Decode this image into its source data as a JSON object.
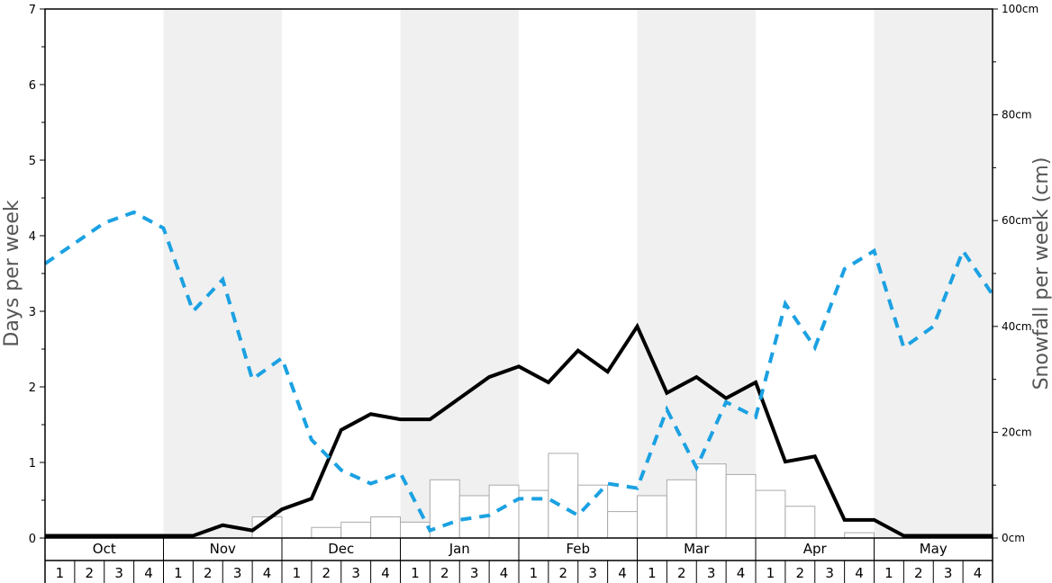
{
  "chart_data": {
    "type": "bar",
    "title": "",
    "ylabel": "Days per week",
    "y2label": "Snowfall per week (cm)",
    "ylim": [
      0,
      7
    ],
    "y2lim": [
      0,
      100
    ],
    "yticks": [
      "0",
      "1",
      "2",
      "3",
      "4",
      "5",
      "6",
      "7"
    ],
    "y2ticks": [
      "0cm",
      "20cm",
      "40cm",
      "60cm",
      "80cm",
      "100cm"
    ],
    "months": [
      "Oct",
      "Nov",
      "Dec",
      "Jan",
      "Feb",
      "Mar",
      "Apr",
      "May"
    ],
    "weeks": [
      "1",
      "2",
      "3",
      "4"
    ],
    "shaded_months": [
      "Nov",
      "Jan",
      "Mar",
      "May"
    ],
    "colors": {
      "shade": "#f0f0f0",
      "bars": "#ffffff",
      "bar_edge": "#aaaaaa",
      "black_line": "#000000",
      "blue_line": "#1ba1e2"
    },
    "series": [
      {
        "kind": "bar",
        "axis": "right",
        "values": [
          0,
          0,
          0,
          0,
          0,
          0,
          0,
          4,
          0,
          2,
          3,
          4,
          3,
          11,
          8,
          10,
          9,
          16,
          10,
          5,
          8,
          11,
          14,
          12,
          9,
          6,
          0,
          1,
          0,
          0,
          0,
          0
        ]
      },
      {
        "kind": "line",
        "style": "solid",
        "axis": "left",
        "values": [
          0.03,
          0.03,
          0.03,
          0.03,
          0.03,
          0.03,
          0.17,
          0.1,
          0.38,
          0.52,
          1.43,
          1.64,
          1.57,
          1.57,
          1.85,
          2.13,
          2.27,
          2.06,
          2.48,
          2.2,
          2.8,
          1.92,
          2.13,
          1.85,
          2.06,
          1.01,
          1.08,
          0.24,
          0.24,
          0.03,
          0.03,
          0.03
        ]
      },
      {
        "kind": "line",
        "style": "dashed",
        "axis": "left",
        "values": [
          3.63,
          3.9,
          4.17,
          4.31,
          4.1,
          3.0,
          3.42,
          2.1,
          2.38,
          1.3,
          0.9,
          0.72,
          0.86,
          0.1,
          0.24,
          0.3,
          0.52,
          0.52,
          0.3,
          0.72,
          0.66,
          1.7,
          0.93,
          1.8,
          1.6,
          3.1,
          2.52,
          3.56,
          3.8,
          2.52,
          2.8,
          3.8
        ]
      }
    ],
    "dashed_end_value": 3.22
  }
}
